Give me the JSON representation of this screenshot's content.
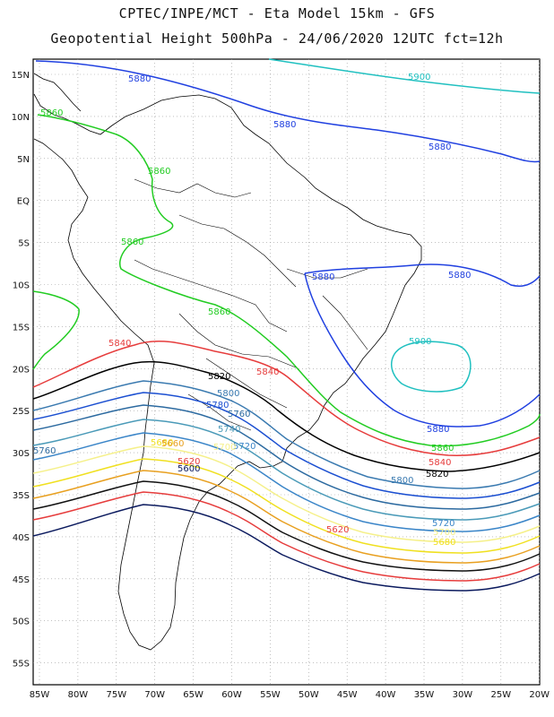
{
  "header": {
    "title_line1": "CPTEC/INPE/MCT  -  Eta Model 15km - GFS",
    "title_line2": "Geopotential Height 500hPa - 24/06/2020 12UTC fct=12h"
  },
  "axes": {
    "lat_labels": [
      "15N",
      "10N",
      "5N",
      "EQ",
      "5S",
      "10S",
      "15S",
      "20S",
      "25S",
      "30S",
      "35S",
      "40S",
      "45S",
      "50S",
      "55S"
    ],
    "lon_labels": [
      "85W",
      "80W",
      "75W",
      "70W",
      "65W",
      "60W",
      "55W",
      "50W",
      "45W",
      "40W",
      "35W",
      "30W",
      "25W",
      "20W"
    ]
  },
  "contour_colors": {
    "5600": "#0b1a5e",
    "5620": "#e63c3c",
    "5640": "#111111",
    "5660": "#e8a020",
    "5680": "#f0e020",
    "5700": "#f5f08a",
    "5720": "#3a85c8",
    "5740": "#4a9ab8",
    "5760": "#2c6aa0",
    "5780": "#1b4fd1",
    "5800": "#3a7ab0",
    "5820": "#000000",
    "5840": "#e63c3c",
    "5860": "#22cc22",
    "5880": "#2040e0",
    "5900": "#20c0c0"
  },
  "contour_labels": [
    {
      "text": "5880",
      "key": "5880"
    },
    {
      "text": "5900",
      "key": "5900"
    },
    {
      "text": "5860",
      "key": "5860"
    },
    {
      "text": "5880",
      "key": "5880"
    },
    {
      "text": "5880",
      "key": "5880"
    },
    {
      "text": "5860",
      "key": "5860"
    },
    {
      "text": "5860",
      "key": "5860"
    },
    {
      "text": "5880",
      "key": "5880"
    },
    {
      "text": "5880",
      "key": "5880"
    },
    {
      "text": "5860",
      "key": "5860"
    },
    {
      "text": "5900",
      "key": "5900"
    },
    {
      "text": "5840",
      "key": "5840"
    },
    {
      "text": "5820",
      "key": "5820"
    },
    {
      "text": "5840",
      "key": "5840"
    },
    {
      "text": "5800",
      "key": "5800"
    },
    {
      "text": "5780",
      "key": "5780"
    },
    {
      "text": "5760",
      "key": "5760"
    },
    {
      "text": "5740",
      "key": "5740"
    },
    {
      "text": "5720",
      "key": "5720"
    },
    {
      "text": "5760",
      "key": "5760"
    },
    {
      "text": "5680",
      "key": "5680"
    },
    {
      "text": "5660",
      "key": "5660"
    },
    {
      "text": "5700",
      "key": "5700"
    },
    {
      "text": "5620",
      "key": "5620"
    },
    {
      "text": "5600",
      "key": "5600"
    },
    {
      "text": "5880",
      "key": "5880"
    },
    {
      "text": "5860",
      "key": "5860"
    },
    {
      "text": "5840",
      "key": "5840"
    },
    {
      "text": "5820",
      "key": "5820"
    },
    {
      "text": "5800",
      "key": "5800"
    },
    {
      "text": "5720",
      "key": "5720"
    },
    {
      "text": "5700",
      "key": "5700"
    },
    {
      "text": "5680",
      "key": "5680"
    },
    {
      "text": "5620",
      "key": "5620"
    }
  ]
}
